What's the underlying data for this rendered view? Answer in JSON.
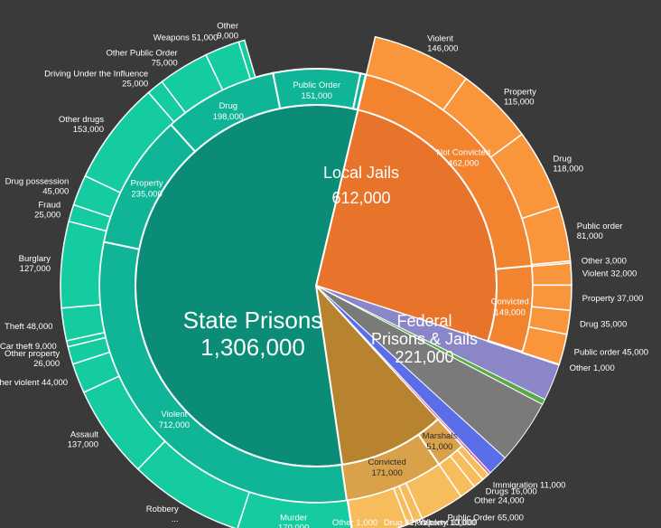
{
  "chart_data": {
    "type": "pie",
    "rings": [
      "inner",
      "middle",
      "outer"
    ],
    "inner": [
      {
        "key": "state",
        "lines": [
          "State Prisons",
          "1,306,000"
        ],
        "value": 1306000,
        "color": "#0b8c76"
      },
      {
        "key": "local",
        "lines": [
          "Local Jails",
          "612,000"
        ],
        "value": 612000,
        "color": "#e8732a"
      },
      {
        "key": "federal",
        "lines": [
          "Federal",
          "Prisons & Jails",
          "221,000"
        ],
        "value": 221000,
        "color": "#b8832e"
      }
    ],
    "gap_slices": [
      {
        "key": "youth",
        "value": 55000,
        "color": "#8a86c8"
      },
      {
        "key": "green",
        "value": 8000,
        "color": "#5aa84a"
      },
      {
        "key": "gray",
        "value": 95000,
        "color": "#7a7a7a"
      },
      {
        "key": "blue",
        "value": 30000,
        "color": "#5a6ee8"
      },
      {
        "key": "pink",
        "value": 4000,
        "color": "#e85a8a"
      }
    ],
    "middle": [
      {
        "parent": "state",
        "lines": [
          "Violent",
          "712,000"
        ],
        "value": 712000
      },
      {
        "parent": "state",
        "lines": [
          "Property",
          "235,000"
        ],
        "value": 235000
      },
      {
        "parent": "state",
        "lines": [
          "Drug",
          "198,000"
        ],
        "value": 198000
      },
      {
        "parent": "state",
        "lines": [
          "Public Order",
          "151,000"
        ],
        "value": 151000
      },
      {
        "parent": "state",
        "lines": [],
        "value": 9000
      },
      {
        "parent": "local",
        "lines": [
          "Not Convicted",
          "462,000"
        ],
        "value": 462000
      },
      {
        "parent": "local",
        "lines": [
          "Convicted",
          "149,000"
        ],
        "value": 149000
      },
      {
        "parent": "local",
        "lines": [],
        "value": 1000
      },
      {
        "parent": "federal",
        "lines": [
          "Marshals",
          "51,000"
        ],
        "value": 51000
      },
      {
        "parent": "federal",
        "lines": [
          "Convicted",
          "171,000"
        ],
        "value": 171000
      }
    ],
    "outer": [
      {
        "parent": "state",
        "lines": [
          "Murder",
          "170,000"
        ],
        "value": 170000
      },
      {
        "parent": "state",
        "lines": [
          "Robbery",
          "..."
        ],
        "value": 170000
      },
      {
        "parent": "state",
        "lines": [
          "Assault",
          "137,000"
        ],
        "value": 137000
      },
      {
        "parent": "state",
        "lines": [
          "Other violent 44,000"
        ],
        "value": 44000
      },
      {
        "parent": "state",
        "lines": [
          "Other property",
          "26,000"
        ],
        "value": 26000
      },
      {
        "parent": "state",
        "lines": [
          "Car theft 9,000"
        ],
        "value": 9000
      },
      {
        "parent": "state",
        "lines": [
          "Theft 48,000"
        ],
        "value": 48000
      },
      {
        "parent": "state",
        "lines": [
          "Burglary",
          "127,000"
        ],
        "value": 127000
      },
      {
        "parent": "state",
        "lines": [
          "Fraud",
          "25,000"
        ],
        "value": 25000
      },
      {
        "parent": "state",
        "lines": [
          "Drug possession",
          "45,000"
        ],
        "value": 45000
      },
      {
        "parent": "state",
        "lines": [
          "Other drugs",
          "153,000"
        ],
        "value": 153000
      },
      {
        "parent": "state",
        "lines": [
          "Driving Under the Influence",
          "25,000"
        ],
        "value": 25000
      },
      {
        "parent": "state",
        "lines": [
          "Other Public Order",
          "75,000"
        ],
        "value": 75000
      },
      {
        "parent": "state",
        "lines": [
          "Weapons  51,000"
        ],
        "value": 51000
      },
      {
        "parent": "state",
        "lines": [
          "Other",
          "9,000"
        ],
        "value": 9000
      },
      {
        "parent": "local",
        "lines": [
          "Violent",
          "146,000"
        ],
        "value": 146000
      },
      {
        "parent": "local",
        "lines": [
          "Property",
          "115,000"
        ],
        "value": 115000
      },
      {
        "parent": "local",
        "lines": [
          "Drug",
          "118,000"
        ],
        "value": 118000
      },
      {
        "parent": "local",
        "lines": [
          "Public order",
          "81,000"
        ],
        "value": 81000
      },
      {
        "parent": "local",
        "lines": [
          "Other 3,000"
        ],
        "value": 3000
      },
      {
        "parent": "local",
        "lines": [
          "Violent 32,000"
        ],
        "value": 32000
      },
      {
        "parent": "local",
        "lines": [
          "Property 37,000"
        ],
        "value": 37000
      },
      {
        "parent": "local",
        "lines": [
          "Drug 35,000"
        ],
        "value": 35000
      },
      {
        "parent": "local",
        "lines": [
          "Public order 45,000"
        ],
        "value": 45000
      },
      {
        "parent": "local",
        "lines": [
          "Other 1,000"
        ],
        "value": 1000
      },
      {
        "parent": "federal",
        "lines": [
          "Immigration 11,000"
        ],
        "value": 11000
      },
      {
        "parent": "federal",
        "lines": [
          "Drugs 16,000"
        ],
        "value": 16000
      },
      {
        "parent": "federal",
        "lines": [
          "Other 24,000"
        ],
        "value": 24000
      },
      {
        "parent": "federal",
        "lines": [
          "Public Order 65,000"
        ],
        "value": 65000
      },
      {
        "parent": "federal",
        "lines": [
          "Violent 13,000"
        ],
        "value": 13000
      },
      {
        "parent": "federal",
        "lines": [
          "Property 10,000"
        ],
        "value": 10000
      },
      {
        "parent": "federal",
        "lines": [
          "Drug 81,000"
        ],
        "value": 81000
      },
      {
        "parent": "federal",
        "lines": [
          "Other 1,000"
        ],
        "value": 1000
      }
    ]
  }
}
